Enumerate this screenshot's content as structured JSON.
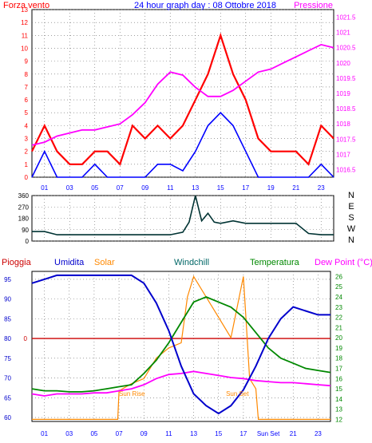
{
  "title": "24 hour graph day : 08 Ottobre 2018",
  "colors": {
    "wind": "#ff0000",
    "pressure": "#ff00ff",
    "title": "#0000ff",
    "direction": "#003333",
    "humidity": "#0000cc",
    "solar": "#ff8800",
    "windchill": "#006666",
    "temperature": "#008800",
    "dewpoint": "#ff00ff",
    "rain": "#cc0000",
    "grid": "#666666",
    "frame": "#000000"
  },
  "chart_data": [
    {
      "type": "line",
      "title": "24 hour graph day : 08 Ottobre 2018",
      "y_left_label": "Forza vento",
      "y_right_label": "Pressione",
      "x_ticks": [
        "01",
        "03",
        "05",
        "07",
        "09",
        "11",
        "13",
        "15",
        "17",
        "19",
        "21",
        "23"
      ],
      "y_left_ticks": [
        "0",
        "1",
        "2",
        "3",
        "4",
        "5",
        "6",
        "7",
        "8",
        "9",
        "10",
        "11",
        "12",
        "13"
      ],
      "y_right_ticks": [
        "1016.5",
        "1017",
        "1017.5",
        "1018",
        "1018.5",
        "1019",
        "1019.5",
        "1020",
        "1020.5",
        "1021",
        "1021.5"
      ],
      "grid": true,
      "series": [
        {
          "name": "Pressione",
          "axis": "right",
          "x": [
            0,
            1,
            2,
            3,
            4,
            5,
            6,
            7,
            8,
            9,
            10,
            11,
            12,
            13,
            14,
            15,
            16,
            17,
            18,
            19,
            20,
            21,
            22,
            23,
            24
          ],
          "values": [
            1017.3,
            1017.4,
            1017.6,
            1017.7,
            1017.8,
            1017.8,
            1017.9,
            1018.0,
            1018.3,
            1018.7,
            1019.3,
            1019.7,
            1019.6,
            1019.2,
            1018.9,
            1018.9,
            1019.1,
            1019.4,
            1019.7,
            1019.8,
            1020.0,
            1020.2,
            1020.4,
            1020.6,
            1020.5
          ]
        },
        {
          "name": "Forza vento",
          "axis": "left",
          "x": [
            0,
            1,
            2,
            3,
            4,
            5,
            6,
            7,
            8,
            9,
            10,
            11,
            12,
            13,
            14,
            15,
            16,
            17,
            18,
            19,
            20,
            21,
            22,
            23,
            24
          ],
          "values": [
            2,
            4,
            2,
            1,
            1,
            2,
            2,
            1,
            4,
            3,
            4,
            3,
            4,
            6,
            8,
            11,
            8,
            6,
            3,
            2,
            2,
            2,
            1,
            4,
            3
          ]
        },
        {
          "name": "Raffica media",
          "axis": "left",
          "x": [
            0,
            1,
            2,
            3,
            4,
            5,
            6,
            7,
            8,
            9,
            10,
            11,
            12,
            13,
            14,
            15,
            16,
            17,
            18,
            19,
            20,
            21,
            22,
            23,
            24
          ],
          "values": [
            0,
            2,
            0,
            0,
            0,
            1,
            0,
            0,
            0,
            0,
            1,
            1,
            0.5,
            2,
            4,
            5,
            4,
            2,
            0,
            0,
            0,
            0,
            0,
            1,
            0
          ]
        }
      ]
    },
    {
      "type": "line",
      "title": "",
      "y_left_ticks": [
        "0",
        "90",
        "180",
        "270",
        "360"
      ],
      "y_right_ticks": [
        "N",
        "W",
        "S",
        "E",
        "N"
      ],
      "ylim": [
        0,
        360
      ],
      "series": [
        {
          "name": "Direzione",
          "x": [
            0,
            1,
            2,
            3,
            4,
            5,
            6,
            7,
            8,
            9,
            10,
            11,
            12,
            12.5,
            13,
            13.5,
            14,
            14.5,
            15,
            16,
            17,
            18,
            19,
            20,
            21,
            22,
            23,
            24
          ],
          "values": [
            75,
            75,
            50,
            50,
            50,
            50,
            50,
            50,
            50,
            50,
            50,
            50,
            70,
            150,
            360,
            160,
            220,
            150,
            140,
            160,
            140,
            140,
            140,
            140,
            140,
            60,
            50,
            50
          ]
        }
      ]
    },
    {
      "type": "line",
      "title": "",
      "legend": [
        "Pioggia",
        "Umidita",
        "Solar",
        "Windchill",
        "Temperatura",
        "Dew Point (°C)"
      ],
      "x_ticks": [
        "01",
        "03",
        "05",
        "07",
        "09",
        "11",
        "13",
        "15",
        "17",
        "Sun Set",
        "21",
        "23"
      ],
      "y_left_ticks": [
        "60",
        "65",
        "70",
        "75",
        "80",
        "85",
        "90",
        "95"
      ],
      "y_right_ticks": [
        "12",
        "13",
        "14",
        "15",
        "16",
        "17",
        "18",
        "19",
        "20",
        "21",
        "22",
        "23",
        "24",
        "25",
        "26"
      ],
      "rain_value": "0",
      "annotations": [
        "Sun Rise",
        "Sun Set"
      ],
      "series": [
        {
          "name": "Umidita",
          "axis": "left",
          "x": [
            0,
            1,
            2,
            3,
            4,
            5,
            6,
            7,
            8,
            9,
            10,
            11,
            12,
            13,
            14,
            15,
            16,
            17,
            18,
            19,
            20,
            21,
            22,
            23,
            24
          ],
          "values": [
            94,
            95,
            96,
            96,
            96,
            96,
            96,
            96,
            96,
            94,
            89,
            82,
            73,
            66,
            63,
            61,
            63,
            67,
            73,
            80,
            85,
            88,
            87,
            86,
            86
          ]
        },
        {
          "name": "Temperatura",
          "axis": "right",
          "x": [
            0,
            1,
            2,
            3,
            4,
            5,
            6,
            7,
            8,
            9,
            10,
            11,
            12,
            13,
            14,
            15,
            16,
            17,
            18,
            19,
            20,
            21,
            22,
            23,
            24
          ],
          "values": [
            15,
            14.8,
            14.8,
            14.7,
            14.7,
            14.8,
            15,
            15.2,
            15.4,
            16.5,
            17.8,
            19.5,
            21.5,
            23.5,
            24,
            23.5,
            23,
            22,
            20.5,
            19,
            18,
            17.5,
            17,
            16.8,
            16.6
          ]
        },
        {
          "name": "Dew Point (°C)",
          "axis": "right",
          "x": [
            0,
            1,
            2,
            3,
            4,
            5,
            6,
            7,
            8,
            9,
            10,
            11,
            12,
            13,
            14,
            15,
            16,
            17,
            18,
            19,
            20,
            21,
            22,
            23,
            24
          ],
          "values": [
            14.5,
            14.3,
            14.5,
            14.5,
            14.5,
            14.6,
            14.6,
            14.8,
            15,
            15.4,
            16,
            16.4,
            16.5,
            16.7,
            16.5,
            16.3,
            16.1,
            16,
            15.8,
            15.7,
            15.6,
            15.6,
            15.5,
            15.4,
            15.3
          ]
        },
        {
          "name": "Solar",
          "axis": "right",
          "x": [
            0,
            6.9,
            7,
            8,
            9,
            10,
            11,
            12,
            12.5,
            13,
            14,
            15,
            16,
            17,
            17.5,
            18,
            18.2,
            24
          ],
          "values": [
            12,
            12,
            14.8,
            15.5,
            16,
            18,
            19,
            19.5,
            24,
            26,
            24,
            22,
            20,
            26,
            16,
            15,
            12,
            12
          ]
        }
      ]
    }
  ]
}
